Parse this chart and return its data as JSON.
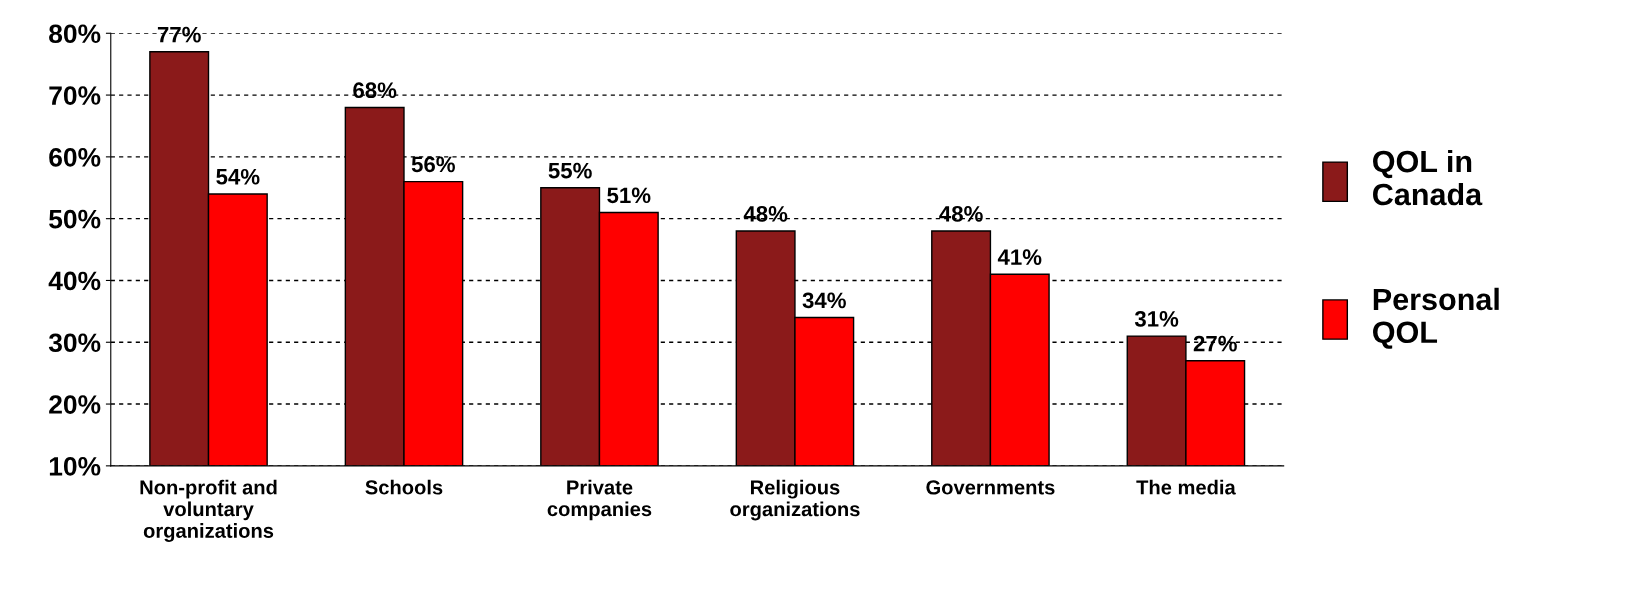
{
  "chart_data": {
    "type": "bar",
    "categories": [
      "Non-profit and\nvoluntary\norganizations",
      "Schools",
      "Private\ncompanies",
      "Religious\norganizations",
      "Governments",
      "The media"
    ],
    "series": [
      {
        "name": "QOL in\nCanada",
        "color": "#8b1a1a",
        "values": [
          77,
          68,
          55,
          48,
          48,
          31
        ],
        "value_labels": [
          "77%",
          "68%",
          "55%",
          "48%",
          "48%",
          "31%"
        ]
      },
      {
        "name": "Personal\nQOL",
        "color": "#ff0000",
        "values": [
          54,
          56,
          51,
          34,
          41,
          27
        ],
        "value_labels": [
          "54%",
          "56%",
          "51%",
          "34%",
          "41%",
          "27%"
        ]
      }
    ],
    "ylim": [
      10,
      80
    ],
    "yticks": [
      {
        "value": 10,
        "label": "10%"
      },
      {
        "value": 20,
        "label": "20%"
      },
      {
        "value": 30,
        "label": "30%"
      },
      {
        "value": 40,
        "label": "40%"
      },
      {
        "value": 50,
        "label": "50%"
      },
      {
        "value": 60,
        "label": "60%"
      },
      {
        "value": 70,
        "label": "70%"
      },
      {
        "value": 80,
        "label": "80%"
      }
    ],
    "grid": "y",
    "legend": "right"
  }
}
